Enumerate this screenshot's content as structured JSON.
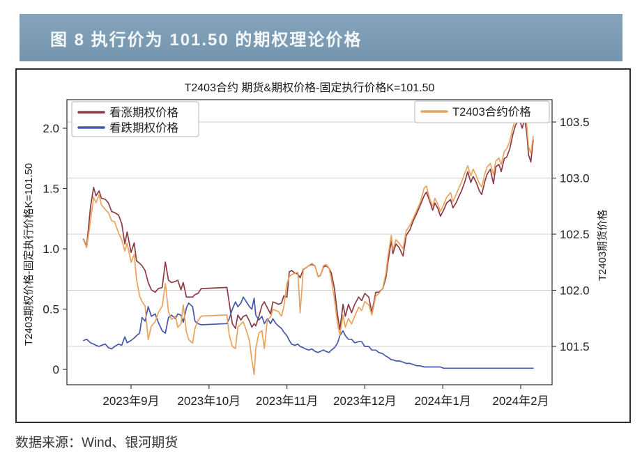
{
  "page": {
    "header_title": "图 8  执行价为 101.50 的期权理论价格",
    "header_bg_color": "#7c9db6",
    "source_note": "数据来源：Wind、银河期货"
  },
  "chart_data": {
    "type": "line",
    "title": "T2403合约 期货&期权价格-固定执行价格K=101.50",
    "x_tick_labels": [
      "2023年9月",
      "2023年10月",
      "2023年11月",
      "2023年12月",
      "2024年1月",
      "2024年2月"
    ],
    "x_note": "t_months = months relative to the 2023年9月 tick (0 = Sep, 1 = Oct, ... 5 = Feb)",
    "left_axis": {
      "label": "T2403期权价格-固定执行价格K=101.50",
      "tick_values": [
        0,
        0.5,
        1.0,
        1.5,
        2.0
      ],
      "tick_labels": [
        "0",
        "0.5",
        "1.0",
        "1.5",
        "2.0"
      ],
      "range": [
        -0.13,
        2.24
      ]
    },
    "right_axis": {
      "label": "T2403期货价格",
      "tick_values": [
        101.5,
        102.0,
        102.5,
        103.0,
        103.5
      ],
      "tick_labels": [
        "101.5",
        "102.0",
        "102.5",
        "103.0",
        "103.5"
      ],
      "range": [
        101.16,
        103.7
      ]
    },
    "grid": "horizontal gridlines aligned to right-axis ticks",
    "legend_left_entries": [
      "看涨期权价格",
      "看跌期权价格"
    ],
    "legend_right_entries": [
      "T2403合约价格"
    ],
    "t_months": [
      -0.61,
      -0.57,
      -0.52,
      -0.48,
      -0.45,
      -0.41,
      -0.38,
      -0.33,
      -0.29,
      -0.25,
      -0.21,
      -0.16,
      -0.12,
      -0.08,
      -0.05,
      0,
      0.04,
      0.07,
      0.11,
      0.14,
      0.18,
      0.22,
      0.26,
      0.31,
      0.35,
      0.4,
      0.44,
      0.48,
      0.52,
      0.57,
      0.6,
      0.64,
      0.67,
      0.71,
      0.74,
      0.79,
      0.82,
      0.86,
      0.9,
      1.23,
      1.26,
      1.3,
      1.34,
      1.37,
      1.41,
      1.44,
      1.48,
      1.52,
      1.55,
      1.58,
      1.6,
      1.64,
      1.68,
      1.71,
      1.75,
      1.79,
      1.82,
      1.86,
      1.89,
      1.93,
      1.96,
      2.0,
      2.03,
      2.06,
      2.1,
      2.14,
      2.17,
      2.21,
      2.24,
      2.28,
      2.32,
      2.36,
      2.4,
      2.43,
      2.47,
      2.5,
      2.54,
      2.57,
      2.61,
      2.65,
      2.68,
      2.72,
      2.75,
      2.79,
      2.83,
      2.87,
      2.92,
      2.96,
      3.0,
      3.05,
      3.09,
      3.14,
      3.18,
      3.23,
      3.27,
      3.3,
      3.34,
      3.36,
      3.4,
      3.44,
      3.49,
      3.53,
      3.58,
      3.62,
      3.67,
      3.71,
      3.76,
      3.79,
      3.83,
      3.87,
      3.9,
      3.94,
      3.97,
      4.01,
      4.05,
      4.1,
      4.13,
      4.17,
      4.21,
      4.24,
      4.28,
      4.32,
      4.36,
      4.39,
      4.43,
      4.47,
      4.5,
      4.54,
      4.57,
      4.61,
      4.65,
      4.68,
      4.72,
      4.75,
      4.79,
      4.82,
      4.86,
      4.9,
      4.93,
      4.97,
      5.0,
      5.02,
      5.05,
      5.08,
      5.1,
      5.13,
      5.16
    ],
    "series": [
      {
        "id": "call-option-price",
        "name": "看涨期权价格",
        "axis": "left",
        "color": "#8c3b44",
        "values": [
          1.08,
          1.02,
          1.35,
          1.51,
          1.44,
          1.48,
          1.42,
          1.41,
          1.38,
          1.31,
          1.3,
          1.28,
          1.21,
          1.04,
          1.14,
          0.97,
          1.05,
          0.9,
          0.88,
          0.86,
          0.82,
          0.72,
          0.66,
          0.64,
          0.67,
          0.68,
          0.89,
          0.74,
          0.72,
          0.73,
          0.74,
          0.66,
          0.72,
          0.6,
          0.6,
          0.6,
          0.62,
          0.63,
          0.67,
          0.68,
          0.55,
          0.38,
          0.34,
          0.45,
          0.41,
          0.44,
          0.45,
          0.4,
          0.35,
          0.38,
          0.36,
          0.44,
          0.53,
          0.56,
          0.51,
          0.46,
          0.56,
          0.55,
          0.54,
          0.55,
          0.61,
          0.6,
          0.81,
          0.82,
          0.8,
          0.79,
          0.76,
          0.83,
          0.84,
          0.86,
          0.87,
          0.86,
          0.77,
          0.78,
          0.85,
          0.86,
          0.84,
          0.8,
          0.67,
          0.45,
          0.33,
          0.54,
          0.44,
          0.54,
          0.47,
          0.54,
          0.6,
          0.57,
          0.63,
          0.6,
          0.47,
          0.64,
          0.64,
          0.67,
          0.76,
          0.9,
          1.07,
          0.96,
          1.04,
          1.01,
          0.94,
          1.11,
          1.16,
          1.23,
          1.3,
          1.36,
          1.44,
          1.47,
          1.4,
          1.32,
          1.38,
          1.33,
          1.27,
          1.32,
          1.38,
          1.41,
          1.34,
          1.38,
          1.44,
          1.48,
          1.55,
          1.64,
          1.55,
          1.6,
          1.55,
          1.48,
          1.45,
          1.56,
          1.62,
          1.66,
          1.54,
          1.68,
          1.7,
          1.64,
          1.75,
          1.76,
          1.83,
          1.95,
          2.02,
          2.07,
          2.04,
          2.0,
          2.08,
          1.95,
          1.78,
          1.72,
          1.9
        ]
      },
      {
        "id": "put-option-price",
        "name": "看跌期权价格",
        "axis": "left",
        "color": "#4458a8",
        "values": [
          0.24,
          0.25,
          0.22,
          0.21,
          0.2,
          0.19,
          0.2,
          0.21,
          0.18,
          0.17,
          0.19,
          0.21,
          0.2,
          0.27,
          0.22,
          0.24,
          0.26,
          0.28,
          0.3,
          0.43,
          0.4,
          0.52,
          0.44,
          0.46,
          0.39,
          0.32,
          0.3,
          0.43,
          0.45,
          0.42,
          0.46,
          0.45,
          0.39,
          0.51,
          0.55,
          0.52,
          0.4,
          0.38,
          0.37,
          0.38,
          0.42,
          0.5,
          0.56,
          0.52,
          0.55,
          0.6,
          0.56,
          0.52,
          0.5,
          0.59,
          0.45,
          0.41,
          0.44,
          0.38,
          0.42,
          0.38,
          0.42,
          0.38,
          0.36,
          0.34,
          0.31,
          0.28,
          0.24,
          0.21,
          0.2,
          0.21,
          0.19,
          0.18,
          0.17,
          0.16,
          0.17,
          0.15,
          0.14,
          0.15,
          0.16,
          0.15,
          0.14,
          0.16,
          0.18,
          0.22,
          0.28,
          0.32,
          0.28,
          0.25,
          0.25,
          0.22,
          0.23,
          0.23,
          0.19,
          0.19,
          0.16,
          0.16,
          0.14,
          0.13,
          0.11,
          0.1,
          0.08,
          0.08,
          0.07,
          0.07,
          0.06,
          0.05,
          0.05,
          0.04,
          0.03,
          0.03,
          0.02,
          0.02,
          0.02,
          0.02,
          0.02,
          0.02,
          0.02,
          0.01,
          0.01,
          0.01,
          0.01,
          0.01,
          0.01,
          0.01,
          0.01,
          0.01,
          0.01,
          0.01,
          0.01,
          0.01,
          0.01,
          0.01,
          0.01,
          0.01,
          0.01,
          0.01,
          0.01,
          0.01,
          0.01,
          0.01,
          0.01,
          0.01,
          0.01,
          0.01,
          0.01,
          0.01,
          0.01,
          0.01,
          0.01,
          0.01,
          0.01
        ]
      },
      {
        "id": "futures-price",
        "name": "T2403合约价格",
        "axis": "right",
        "color": "#eaa35e",
        "values": [
          102.45,
          102.38,
          102.62,
          102.83,
          102.78,
          102.85,
          102.76,
          102.72,
          102.69,
          102.62,
          102.61,
          102.51,
          102.45,
          102.35,
          102.42,
          102.25,
          102.32,
          102.1,
          101.95,
          101.9,
          101.86,
          101.56,
          101.68,
          101.72,
          101.8,
          101.86,
          102.06,
          101.81,
          101.74,
          101.77,
          101.67,
          101.7,
          101.87,
          101.63,
          101.56,
          101.53,
          101.66,
          101.73,
          101.77,
          101.78,
          101.6,
          101.5,
          101.48,
          101.67,
          101.7,
          101.72,
          101.64,
          101.55,
          101.38,
          101.25,
          101.48,
          101.62,
          101.64,
          101.48,
          101.74,
          101.76,
          101.83,
          101.82,
          101.81,
          101.77,
          101.85,
          102.06,
          102.12,
          102.14,
          102.15,
          102.16,
          101.8,
          102.18,
          102.2,
          102.22,
          102.24,
          102.22,
          102.12,
          102.13,
          102.22,
          102.23,
          102.2,
          102.1,
          101.92,
          101.7,
          101.6,
          101.78,
          101.67,
          101.75,
          101.7,
          101.77,
          101.85,
          101.82,
          101.9,
          101.87,
          101.78,
          101.95,
          101.97,
          102.02,
          102.15,
          102.32,
          102.49,
          102.36,
          102.45,
          102.42,
          102.37,
          102.53,
          102.58,
          102.64,
          102.72,
          102.78,
          102.91,
          102.93,
          102.82,
          102.75,
          102.82,
          102.76,
          102.7,
          102.76,
          102.83,
          102.87,
          102.79,
          102.85,
          102.92,
          102.96,
          103.04,
          103.11,
          103.02,
          103.08,
          103.02,
          102.95,
          102.92,
          103.04,
          103.1,
          103.13,
          103.03,
          103.15,
          103.18,
          103.12,
          103.24,
          103.26,
          103.33,
          103.45,
          103.53,
          103.58,
          103.55,
          103.5,
          103.59,
          103.46,
          103.28,
          103.22,
          103.37
        ]
      }
    ]
  }
}
